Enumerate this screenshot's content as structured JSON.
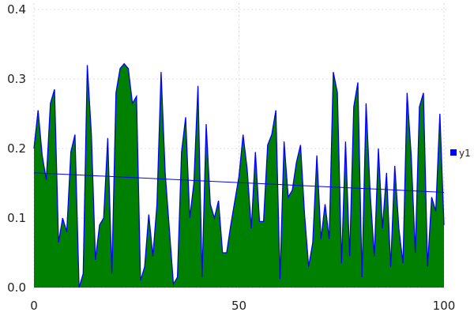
{
  "chart_data": {
    "type": "area",
    "title": "",
    "xlabel": "",
    "ylabel": "",
    "xlim": [
      0,
      100
    ],
    "ylim": [
      0,
      0.4
    ],
    "x_ticks": [
      "0",
      "50",
      "100"
    ],
    "y_ticks": [
      "0.0",
      "0.1",
      "0.2",
      "0.3",
      "0.4"
    ],
    "grid": true,
    "legend_position": "right",
    "series": [
      {
        "name": "y1",
        "fill_color": "#008000",
        "line_color": "#0000ff",
        "values": [
          0.2,
          0.255,
          0.19,
          0.155,
          0.265,
          0.285,
          0.065,
          0.1,
          0.08,
          0.195,
          0.22,
          0.0,
          0.02,
          0.32,
          0.22,
          0.04,
          0.09,
          0.1,
          0.215,
          0.02,
          0.28,
          0.315,
          0.322,
          0.315,
          0.265,
          0.275,
          0.01,
          0.03,
          0.105,
          0.045,
          0.12,
          0.31,
          0.165,
          0.085,
          0.005,
          0.015,
          0.195,
          0.245,
          0.1,
          0.15,
          0.29,
          0.015,
          0.235,
          0.12,
          0.1,
          0.125,
          0.05,
          0.05,
          0.09,
          0.125,
          0.16,
          0.22,
          0.17,
          0.085,
          0.195,
          0.095,
          0.095,
          0.205,
          0.22,
          0.255,
          0.012,
          0.21,
          0.13,
          0.14,
          0.18,
          0.205,
          0.105,
          0.03,
          0.065,
          0.19,
          0.07,
          0.12,
          0.07,
          0.31,
          0.28,
          0.035,
          0.21,
          0.045,
          0.26,
          0.295,
          0.015,
          0.265,
          0.135,
          0.045,
          0.2,
          0.085,
          0.165,
          0.03,
          0.175,
          0.085,
          0.035,
          0.28,
          0.19,
          0.05,
          0.26,
          0.28,
          0.03,
          0.13,
          0.11,
          0.25,
          0.09
        ]
      }
    ],
    "trend_line": {
      "color": "#0000ff",
      "start": [
        0,
        0.165
      ],
      "end": [
        100,
        0.137
      ]
    }
  }
}
